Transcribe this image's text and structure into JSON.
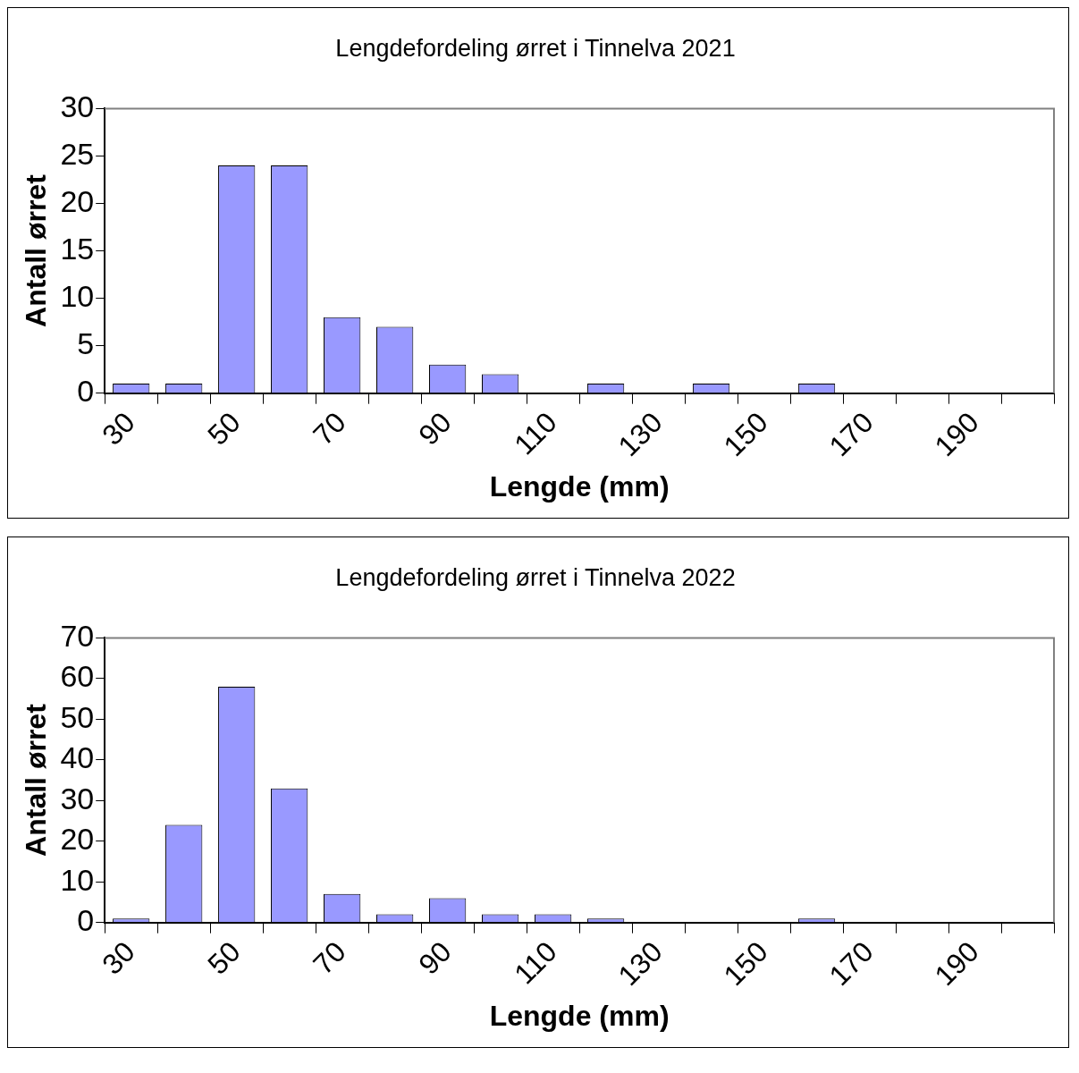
{
  "chart_data": [
    {
      "type": "bar",
      "title": "Lengdefordeling ørret i Tinnelva 2021",
      "xlabel": "Lengde (mm)",
      "ylabel": "Antall ørret",
      "categories": [
        "30",
        null,
        "50",
        null,
        "70",
        null,
        "90",
        null,
        "110",
        null,
        "130",
        null,
        "150",
        null,
        "170",
        null,
        "190",
        null
      ],
      "values": [
        1,
        1,
        24,
        24,
        8,
        7,
        3,
        2,
        0,
        1,
        0,
        1,
        0,
        1,
        0,
        0,
        0,
        0
      ],
      "color": "#9999ff",
      "ylim": [
        0,
        30
      ],
      "yticks": [
        0,
        5,
        10,
        15,
        20,
        25,
        30
      ],
      "grid": false
    },
    {
      "type": "bar",
      "title": "Lengdefordeling ørret i Tinnelva 2022",
      "xlabel": "Lengde (mm)",
      "ylabel": "Antall ørret",
      "categories": [
        "30",
        null,
        "50",
        null,
        "70",
        null,
        "90",
        null,
        "110",
        null,
        "130",
        null,
        "150",
        null,
        "170",
        null,
        "190",
        null
      ],
      "values": [
        1,
        24,
        58,
        33,
        7,
        2,
        6,
        2,
        2,
        1,
        0,
        0,
        0,
        1,
        0,
        0,
        0,
        0
      ],
      "color": "#9999ff",
      "ylim": [
        0,
        70
      ],
      "yticks": [
        0,
        10,
        20,
        30,
        40,
        50,
        60,
        70
      ],
      "grid": false
    }
  ]
}
